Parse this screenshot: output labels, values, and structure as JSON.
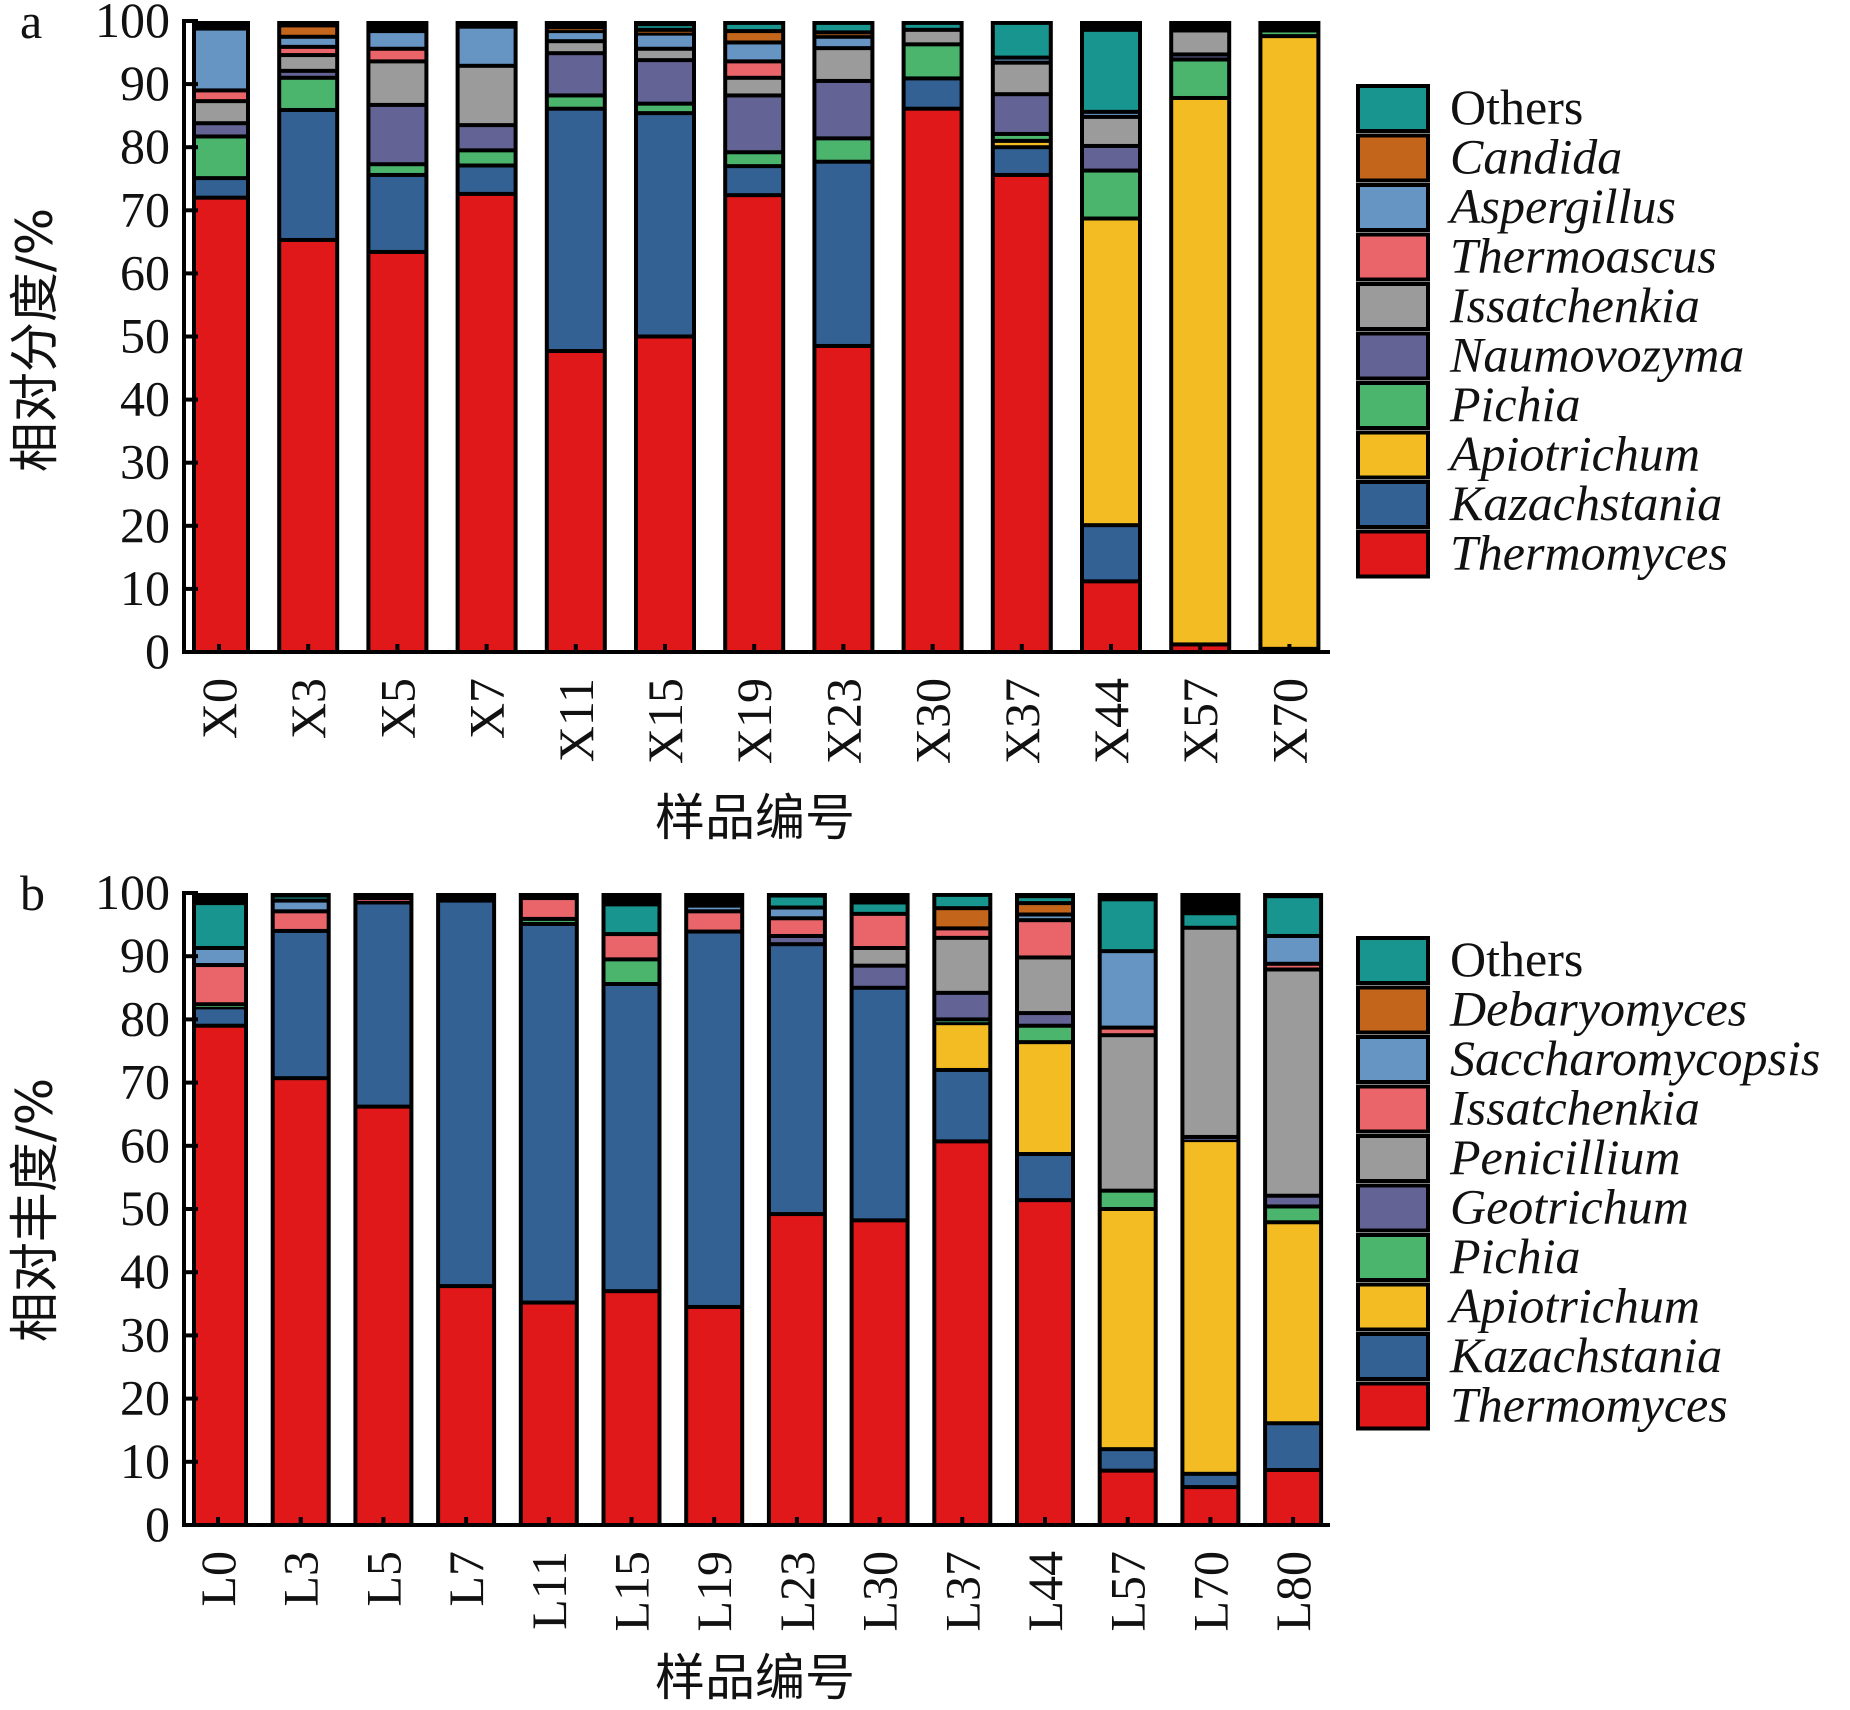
{
  "chart_data": [
    {
      "type": "bar",
      "stacked": true,
      "panel_label": "a",
      "xlabel": "样品编号",
      "ylabel": "相对分度/%",
      "ylim": [
        0,
        100
      ],
      "yticks": [
        0,
        10,
        20,
        30,
        40,
        50,
        60,
        70,
        80,
        90,
        100
      ],
      "legend_placement": "right",
      "categories": [
        "X0",
        "X3",
        "X5",
        "X7",
        "X11",
        "X15",
        "X19",
        "X23",
        "X30",
        "X37",
        "X44",
        "X57",
        "X70"
      ],
      "series": [
        {
          "name": "Thermomyces",
          "italic": true,
          "color": "#e0181a",
          "values": [
            72.0,
            65.3,
            63.4,
            72.6,
            47.7,
            50.0,
            72.4,
            48.5,
            86.1,
            75.6,
            11.2,
            1.2,
            0.5
          ]
        },
        {
          "name": "Kazachstania",
          "italic": true,
          "color": "#336194",
          "values": [
            3.1,
            20.6,
            12.2,
            4.5,
            38.4,
            35.4,
            4.6,
            29.2,
            4.8,
            4.4,
            8.9,
            0,
            0
          ]
        },
        {
          "name": "Apiotrichum",
          "italic": true,
          "color": "#f3bc22",
          "values": [
            0,
            0,
            0,
            0,
            0,
            0,
            0,
            0,
            0,
            1.0,
            48.6,
            86.6,
            97.1
          ]
        },
        {
          "name": "Pichia",
          "italic": true,
          "color": "#4bb56e",
          "values": [
            6.6,
            5.1,
            1.7,
            2.4,
            2.1,
            1.5,
            2.2,
            3.7,
            5.4,
            1.1,
            7.6,
            6.1,
            0.9
          ]
        },
        {
          "name": "Naumovozyma",
          "italic": true,
          "color": "#646395",
          "values": [
            2.1,
            1.1,
            9.4,
            4.0,
            6.7,
            6.9,
            9.0,
            9.1,
            0,
            6.3,
            3.9,
            0.8,
            0
          ]
        },
        {
          "name": "Issatchenkia",
          "italic": true,
          "color": "#9b9b9b",
          "values": [
            3.5,
            2.5,
            6.9,
            9.4,
            1.9,
            1.8,
            2.8,
            5.2,
            2.3,
            5.0,
            4.6,
            3.8,
            0
          ]
        },
        {
          "name": "Thermoascus",
          "italic": true,
          "color": "#e9656a",
          "values": [
            1.7,
            1.3,
            2.0,
            0,
            0,
            0,
            2.6,
            0,
            0,
            0,
            0,
            0,
            0
          ]
        },
        {
          "name": "Aspergillus",
          "italic": true,
          "color": "#6694c3",
          "values": [
            9.8,
            1.6,
            2.8,
            6.2,
            1.6,
            2.4,
            3.0,
            1.8,
            0,
            0.8,
            0.8,
            0,
            0
          ]
        },
        {
          "name": "Candida",
          "italic": true,
          "color": "#c4651c",
          "values": [
            0,
            1.8,
            0,
            0,
            0.6,
            0.6,
            1.8,
            0.7,
            0,
            0,
            0,
            0,
            0
          ]
        },
        {
          "name": "Others",
          "italic": false,
          "color": "#18958f",
          "values": [
            0,
            0,
            0,
            0,
            0,
            0.9,
            1.3,
            1.5,
            1.1,
            5.5,
            13.0,
            0,
            0
          ]
        }
      ]
    },
    {
      "type": "bar",
      "stacked": true,
      "panel_label": "b",
      "xlabel": "样品编号",
      "ylabel": "相对丰度/%",
      "ylim": [
        0,
        100
      ],
      "yticks": [
        0,
        10,
        20,
        30,
        40,
        50,
        60,
        70,
        80,
        90,
        100
      ],
      "legend_placement": "right",
      "categories": [
        "L0",
        "L3",
        "L5",
        "L7",
        "L11",
        "L15",
        "L19",
        "L23",
        "L30",
        "L37",
        "L44",
        "L57",
        "L70",
        "L80"
      ],
      "series": [
        {
          "name": "Thermomyces",
          "italic": true,
          "color": "#e0181a",
          "values": [
            79.0,
            70.7,
            66.2,
            37.8,
            35.2,
            37.0,
            34.5,
            49.2,
            48.2,
            60.7,
            51.4,
            8.6,
            6.0,
            8.7
          ]
        },
        {
          "name": "Kazachstania",
          "italic": true,
          "color": "#336194",
          "values": [
            2.9,
            23.3,
            32.3,
            61.0,
            59.9,
            48.6,
            59.4,
            42.7,
            36.8,
            11.3,
            7.3,
            3.4,
            2.1,
            7.4
          ]
        },
        {
          "name": "Apiotrichum",
          "italic": true,
          "color": "#f3bc22",
          "values": [
            0,
            0,
            0,
            0,
            0,
            0,
            0,
            0,
            0,
            7.4,
            17.7,
            38.0,
            52.8,
            31.8
          ]
        },
        {
          "name": "Pichia",
          "italic": true,
          "color": "#4bb56e",
          "values": [
            0.5,
            0,
            0,
            0,
            0.8,
            3.9,
            0,
            0,
            0,
            0.6,
            2.6,
            2.9,
            0,
            2.5
          ]
        },
        {
          "name": "Geotrichum",
          "italic": true,
          "color": "#646395",
          "values": [
            0,
            0,
            0,
            0,
            0,
            0,
            0,
            1.3,
            3.5,
            4.2,
            2.0,
            0,
            0.5,
            1.7
          ]
        },
        {
          "name": "Penicillium",
          "italic": true,
          "color": "#9b9b9b",
          "values": [
            0,
            0,
            0,
            0,
            0,
            0,
            0,
            0,
            2.8,
            8.7,
            8.8,
            24.6,
            33.1,
            35.8
          ]
        },
        {
          "name": "Issatchenkia",
          "italic": true,
          "color": "#e9656a",
          "values": [
            6.2,
            3.1,
            0.7,
            0,
            3.3,
            4.0,
            3.2,
            2.8,
            5.4,
            1.5,
            5.9,
            1.2,
            0,
            0.9
          ]
        },
        {
          "name": "Saccharomycopsis",
          "italic": true,
          "color": "#6694c3",
          "values": [
            2.7,
            1.7,
            0,
            0,
            0,
            0,
            0.9,
            1.7,
            0,
            0,
            0.9,
            12.1,
            0,
            4.4
          ]
        },
        {
          "name": "Debaryomyces",
          "italic": true,
          "color": "#c4651c",
          "values": [
            0,
            0,
            0,
            0,
            0,
            0,
            0,
            0,
            0,
            3.2,
            1.8,
            0,
            0,
            0
          ]
        },
        {
          "name": "Others",
          "italic": false,
          "color": "#18958f",
          "values": [
            7.1,
            0.8,
            0,
            0,
            0,
            4.7,
            0,
            1.9,
            1.8,
            2.1,
            1.1,
            8.2,
            2.3,
            6.3
          ]
        }
      ]
    }
  ]
}
